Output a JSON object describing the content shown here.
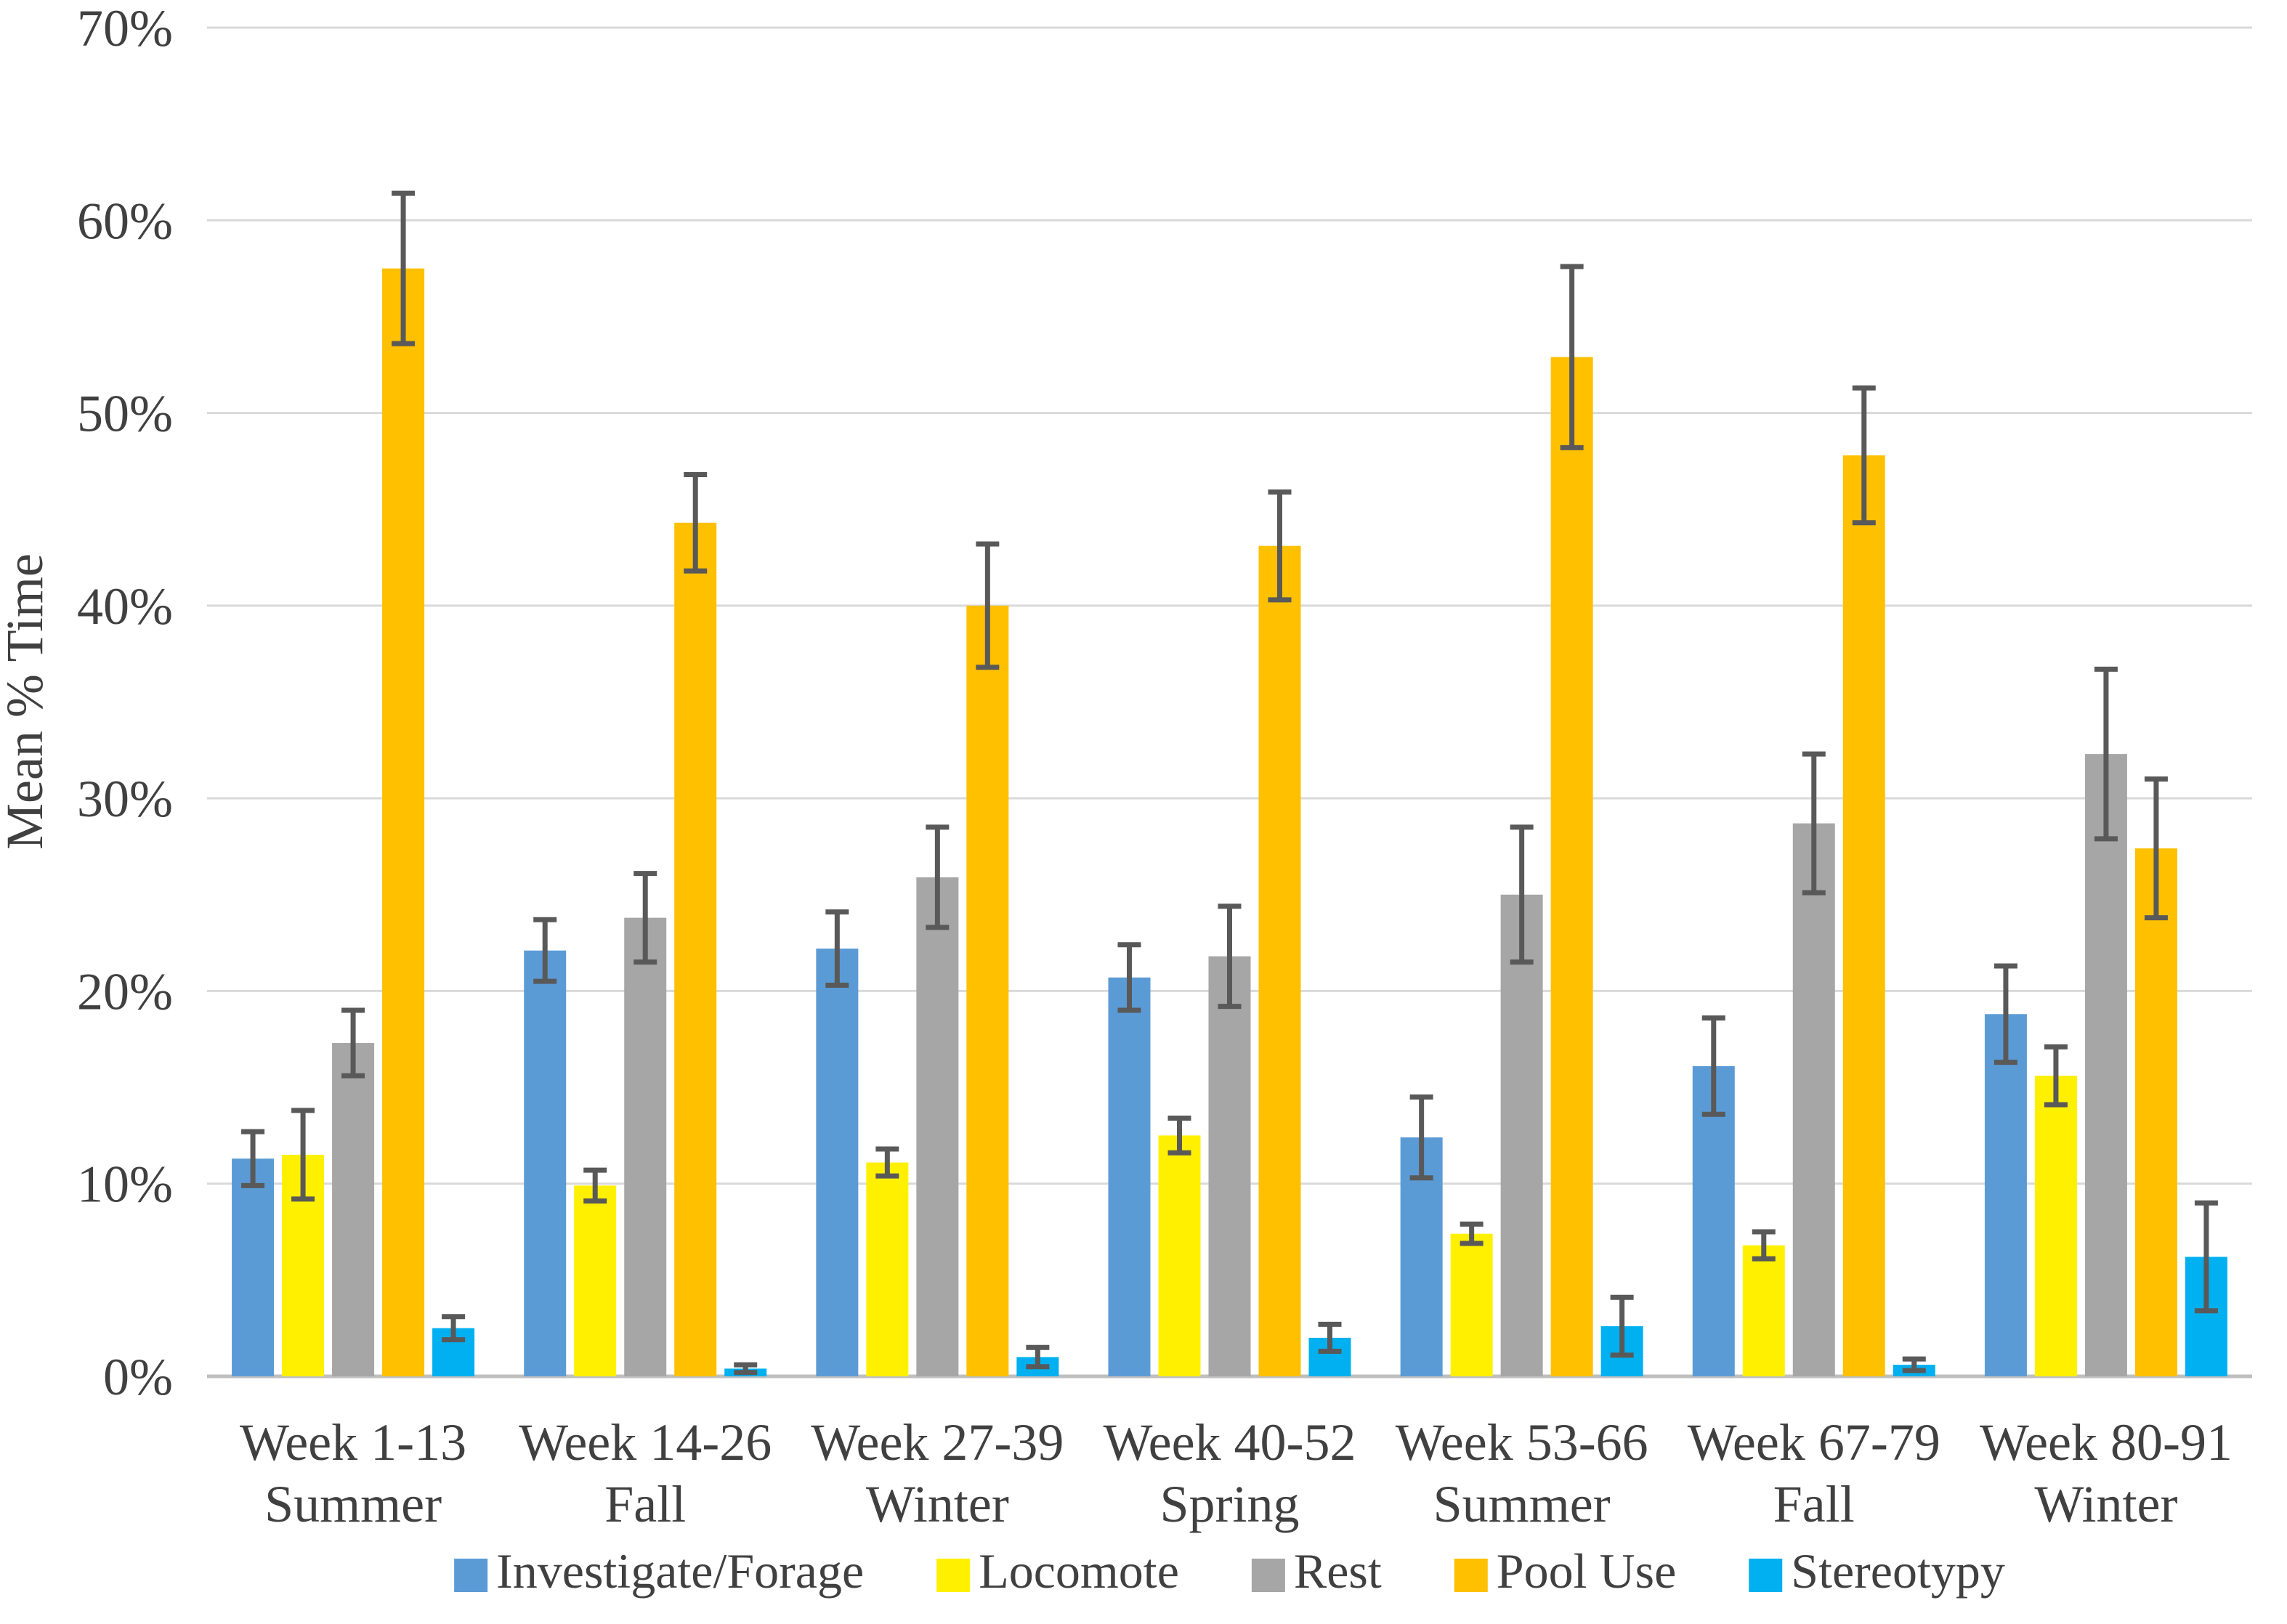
{
  "chart_data": {
    "type": "bar",
    "title": "",
    "xlabel": "",
    "ylabel": "Mean % Time",
    "ylim": [
      0,
      70
    ],
    "y_tick_step": 10,
    "y_tick_labels": [
      "0%",
      "10%",
      "20%",
      "30%",
      "40%",
      "50%",
      "60%",
      "70%"
    ],
    "grid": true,
    "legend_position": "bottom",
    "error_bars": true,
    "categories": [
      {
        "label": "Week 1-13",
        "sublabel": "Summer"
      },
      {
        "label": "Week 14-26",
        "sublabel": "Fall"
      },
      {
        "label": "Week 27-39",
        "sublabel": "Winter"
      },
      {
        "label": "Week 40-52",
        "sublabel": "Spring"
      },
      {
        "label": "Week 53-66",
        "sublabel": "Summer"
      },
      {
        "label": "Week 67-79",
        "sublabel": "Fall"
      },
      {
        "label": "Week 80-91",
        "sublabel": "Winter"
      }
    ],
    "series": [
      {
        "name": "Investigate/Forage",
        "color": "#5B9BD5",
        "values": [
          11.3,
          22.1,
          22.2,
          20.7,
          12.4,
          16.1,
          18.8
        ],
        "errors": [
          1.4,
          1.6,
          1.9,
          1.7,
          2.1,
          2.5,
          2.5
        ]
      },
      {
        "name": "Locomote",
        "color": "#FFF000",
        "values": [
          11.5,
          9.9,
          11.1,
          12.5,
          7.4,
          6.8,
          15.6
        ],
        "errors": [
          2.3,
          0.8,
          0.7,
          0.9,
          0.5,
          0.7,
          1.5
        ]
      },
      {
        "name": "Rest",
        "color": "#A6A6A6",
        "values": [
          17.3,
          23.8,
          25.9,
          21.8,
          25.0,
          28.7,
          32.3
        ],
        "errors": [
          1.7,
          2.3,
          2.6,
          2.6,
          3.5,
          3.6,
          4.4
        ]
      },
      {
        "name": "Pool Use",
        "color": "#FFC000",
        "values": [
          57.5,
          44.3,
          40.0,
          43.1,
          52.9,
          47.8,
          27.4
        ],
        "errors": [
          3.9,
          2.5,
          3.2,
          2.8,
          4.7,
          3.5,
          3.6
        ]
      },
      {
        "name": "Stereotypy",
        "color": "#00B0F0",
        "values": [
          2.5,
          0.4,
          1.0,
          2.0,
          2.6,
          0.6,
          6.2
        ],
        "errors": [
          0.6,
          0.2,
          0.5,
          0.7,
          1.5,
          0.3,
          2.8
        ]
      }
    ],
    "style_colors": {
      "gridline": "#D9D9D9",
      "baseline": "#BFBFBF",
      "error_bar": "#595959",
      "text": "#404040"
    }
  }
}
